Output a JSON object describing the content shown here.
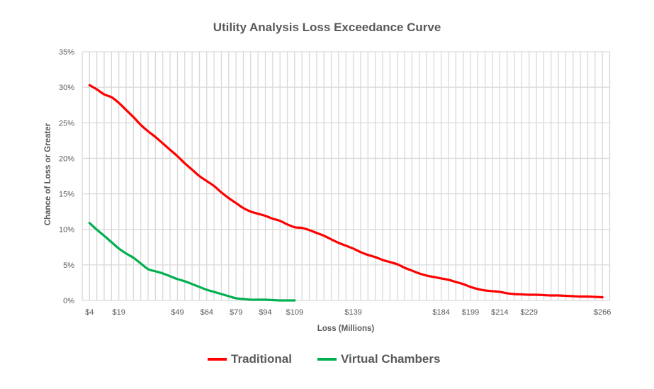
{
  "chart_data": {
    "type": "line",
    "title": "Utility Analysis Loss Exceedance Curve",
    "xlabel": "Loss (Millions)",
    "ylabel": "Chance of Loss or Greater",
    "ylim": [
      0,
      35
    ],
    "y_ticks": [
      "0%",
      "5%",
      "10%",
      "15%",
      "20%",
      "25%",
      "30%",
      "35%"
    ],
    "y_tick_values": [
      0,
      5,
      10,
      15,
      20,
      25,
      30,
      35
    ],
    "category_count": 71,
    "x_tick_labels": [
      {
        "category_index": 0,
        "label": "$4"
      },
      {
        "category_index": 4,
        "label": "$19"
      },
      {
        "category_index": 12,
        "label": "$49"
      },
      {
        "category_index": 16,
        "label": "$64"
      },
      {
        "category_index": 20,
        "label": "$79"
      },
      {
        "category_index": 24,
        "label": "$94"
      },
      {
        "category_index": 28,
        "label": "$109"
      },
      {
        "category_index": 36,
        "label": "$139"
      },
      {
        "category_index": 48,
        "label": "$184"
      },
      {
        "category_index": 52,
        "label": "$199"
      },
      {
        "category_index": 56,
        "label": "$214"
      },
      {
        "category_index": 60,
        "label": "$229"
      },
      {
        "category_index": 70,
        "label": "$266"
      }
    ],
    "grid": true,
    "legend_position": "bottom",
    "series": [
      {
        "name": "Traditional",
        "color": "#ff0000",
        "values": [
          30.3,
          29.7,
          29.0,
          28.6,
          27.8,
          26.8,
          25.8,
          24.7,
          23.8,
          23.0,
          22.1,
          21.2,
          20.3,
          19.3,
          18.4,
          17.5,
          16.8,
          16.1,
          15.2,
          14.4,
          13.7,
          13.0,
          12.5,
          12.2,
          11.9,
          11.5,
          11.2,
          10.7,
          10.3,
          10.2,
          9.9,
          9.5,
          9.1,
          8.6,
          8.1,
          7.7,
          7.3,
          6.8,
          6.4,
          6.1,
          5.7,
          5.4,
          5.1,
          4.6,
          4.2,
          3.8,
          3.5,
          3.3,
          3.1,
          2.9,
          2.6,
          2.3,
          1.9,
          1.6,
          1.4,
          1.3,
          1.2,
          1.0,
          0.9,
          0.85,
          0.8,
          0.8,
          0.75,
          0.7,
          0.7,
          0.65,
          0.6,
          0.55,
          0.55,
          0.5,
          0.45
        ]
      },
      {
        "name": "Virtual Chambers",
        "color": "#00b050",
        "values": [
          10.9,
          9.95,
          9.1,
          8.2,
          7.3,
          6.6,
          6.0,
          5.2,
          4.4,
          4.1,
          3.8,
          3.4,
          3.0,
          2.7,
          2.3,
          1.9,
          1.5,
          1.2,
          0.9,
          0.6,
          0.3,
          0.2,
          0.1,
          0.1,
          0.1,
          0.05,
          0,
          0,
          0
        ]
      }
    ]
  }
}
